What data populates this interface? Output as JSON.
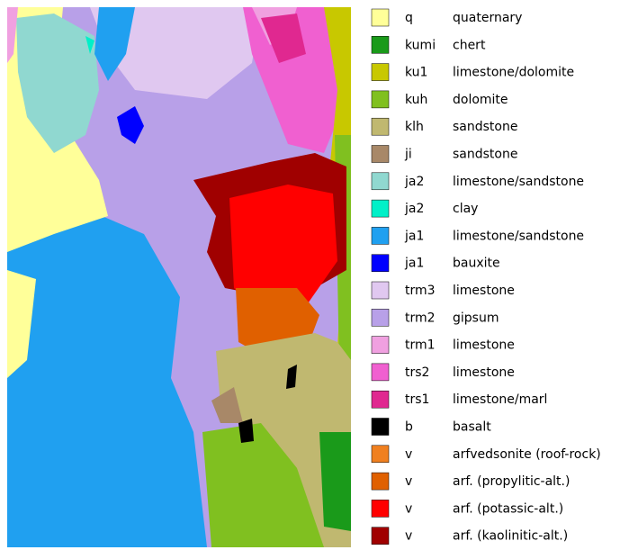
{
  "legend": [
    {
      "code": "q",
      "description": "quaternary",
      "color": "#ffff99"
    },
    {
      "code": "kumi",
      "description": "chert",
      "color": "#1a9a1a"
    },
    {
      "code": "ku1",
      "description": "limestone/dolomite",
      "color": "#c8c800"
    },
    {
      "code": "kuh",
      "description": "dolomite",
      "color": "#80c020"
    },
    {
      "code": "klh",
      "description": "sandstone",
      "color": "#c0b870"
    },
    {
      "code": "ji",
      "description": "sandstone",
      "color": "#a88868"
    },
    {
      "code": "ja2",
      "description": "limestone/sandstone",
      "color": "#90d8d0"
    },
    {
      "code": "ja2",
      "description": "clay",
      "color": "#00f0c8"
    },
    {
      "code": "ja1",
      "description": "limestone/sandstone",
      "color": "#20a0f0"
    },
    {
      "code": "ja1",
      "description": "bauxite",
      "color": "#0000ff"
    },
    {
      "code": "trm3",
      "description": "limestone",
      "color": "#e0c8f0"
    },
    {
      "code": "trm2",
      "description": "gipsum",
      "color": "#b8a0e8"
    },
    {
      "code": "trm1",
      "description": "limestone",
      "color": "#f0a0e0"
    },
    {
      "code": "trs2",
      "description": "limestone",
      "color": "#f060d0"
    },
    {
      "code": "trs1",
      "description": "limestone/marl",
      "color": "#e02890"
    },
    {
      "code": "b",
      "description": "basalt",
      "color": "#000000"
    },
    {
      "code": "v",
      "description": "arfvedsonite (roof-rock)",
      "color": "#f08020"
    },
    {
      "code": "v",
      "description": "arf. (propylitic-alt.)",
      "color": "#e06000"
    },
    {
      "code": "v",
      "description": "arf. (potassic-alt.)",
      "color": "#ff0000"
    },
    {
      "code": "v",
      "description": "arf. (kaolinitic-alt.)",
      "color": "#a00000"
    }
  ]
}
